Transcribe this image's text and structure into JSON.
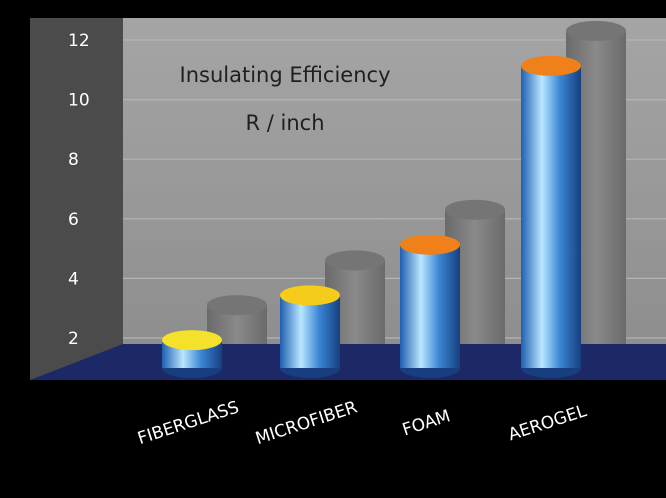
{
  "chart_data": {
    "type": "bar",
    "title": "Insulating Efficiency",
    "subtitle": "R / inch",
    "categories": [
      "FIBERGLASS",
      "MICROFIBER",
      "FOAM",
      "AEROGEL"
    ],
    "values": [
      2.4,
      3.9,
      5.6,
      11.6
    ],
    "y_ticks": [
      "2",
      "4",
      "6",
      "8",
      "10",
      "12"
    ],
    "ylim": [
      0,
      12
    ],
    "grid": true,
    "style": "3d-cylinders"
  },
  "colors": {
    "bar_body": "#3a86d4",
    "bar_body_highlight": "#b9e6ff",
    "cap_low": "#f4e12a",
    "cap_mid": "#f5cc1c",
    "cap_high": "#f0801a",
    "floor": "#1d2867",
    "wall": "#9a9a9a",
    "axis_panel": "#4b4b4b",
    "background": "#000000",
    "label_default": "#ffffff",
    "label_highlight": "#f0d020"
  },
  "cap_colors": [
    "#f4e12a",
    "#f5cc1c",
    "#f0801a",
    "#f0801a"
  ],
  "label_colors": [
    "#ffffff",
    "#ffffff",
    "#ffffff",
    "#f0d020"
  ]
}
